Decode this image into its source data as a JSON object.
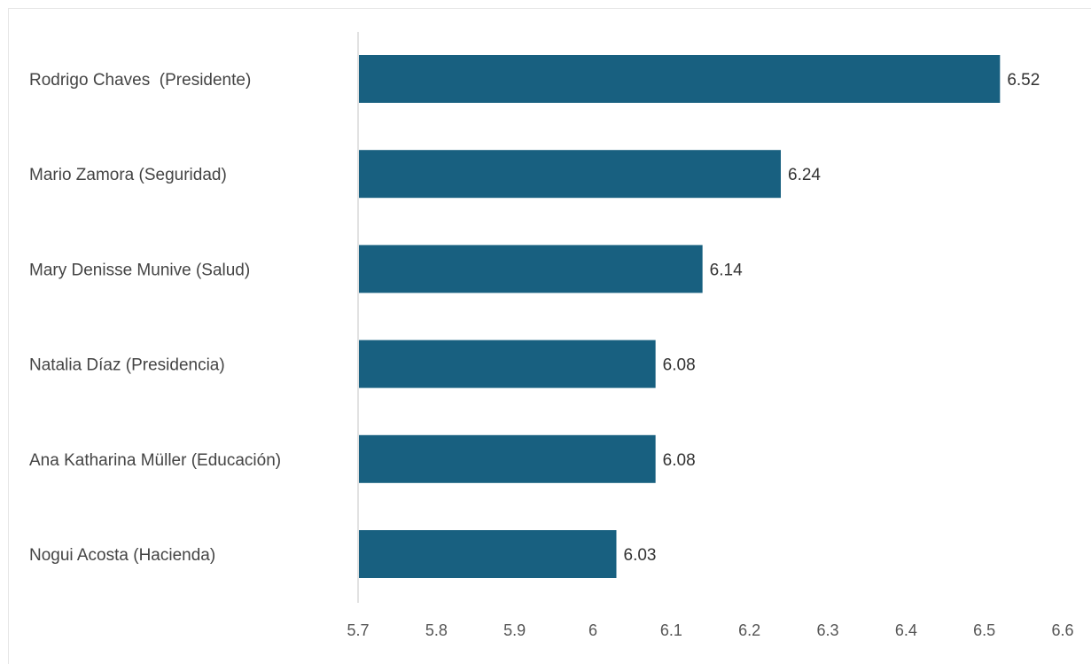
{
  "colors": {
    "bar": "#186080",
    "axis": "#d9d9d9",
    "background": "#ffffff"
  },
  "chart_data": {
    "type": "bar",
    "orientation": "horizontal",
    "title": "",
    "xlabel": "",
    "ylabel": "",
    "categories": [
      "Rodrigo Chaves  (Presidente)",
      "Mario Zamora (Seguridad)",
      "Mary Denisse Munive (Salud)",
      "Natalia Díaz (Presidencia)",
      "Ana Katharina Müller (Educación)",
      "Nogui Acosta (Hacienda)"
    ],
    "values": [
      6.52,
      6.24,
      6.14,
      6.08,
      6.08,
      6.03
    ],
    "value_labels": [
      "6.52",
      "6.24",
      "6.14",
      "6.08",
      "6.08",
      "6.03"
    ],
    "xlim": [
      5.7,
      6.6
    ],
    "x_ticks": [
      5.7,
      5.8,
      5.9,
      6,
      6.1,
      6.2,
      6.3,
      6.4,
      6.5,
      6.6
    ],
    "x_tick_labels": [
      "5.7",
      "5.8",
      "5.9",
      "6",
      "6.1",
      "6.2",
      "6.3",
      "6.4",
      "6.5",
      "6.6"
    ],
    "grid": false,
    "legend": "none"
  }
}
